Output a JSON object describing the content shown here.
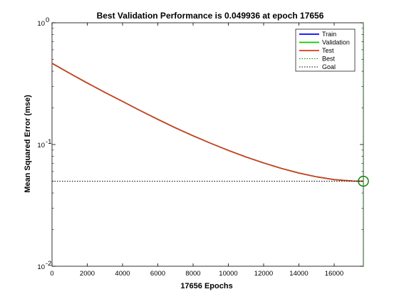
{
  "chart_data": {
    "type": "line",
    "title": "Best Validation Performance is 0.049936 at epoch 17656",
    "xlabel": "17656 Epochs",
    "ylabel": "Mean Squared Error  (mse)",
    "xlim": [
      0,
      17656
    ],
    "ylim": [
      0.01,
      1
    ],
    "yscale": "log",
    "x_ticks": [
      0,
      2000,
      4000,
      6000,
      8000,
      10000,
      12000,
      14000,
      16000
    ],
    "y_ticks": [
      {
        "value": 0.01,
        "base": "10",
        "exp": "-2"
      },
      {
        "value": 0.1,
        "base": "10",
        "exp": "-1"
      },
      {
        "value": 1,
        "base": "10",
        "exp": "0"
      }
    ],
    "grid": false,
    "legend_position": "top-right",
    "x": [
      0,
      1000,
      2000,
      3000,
      4000,
      5000,
      6000,
      7000,
      8000,
      9000,
      10000,
      11000,
      12000,
      13000,
      14000,
      15000,
      16000,
      17000,
      17656
    ],
    "series": [
      {
        "name": "Train",
        "color": "#0000ff",
        "style": "solid",
        "values": [
          0.465,
          0.385,
          0.32,
          0.268,
          0.226,
          0.19,
          0.161,
          0.137,
          0.118,
          0.1023,
          0.0895,
          0.079,
          0.0706,
          0.0637,
          0.0583,
          0.0543,
          0.0515,
          0.0502,
          0.049936
        ]
      },
      {
        "name": "Validation",
        "color": "#00cc00",
        "style": "solid",
        "values": [
          0.465,
          0.385,
          0.32,
          0.268,
          0.226,
          0.19,
          0.161,
          0.137,
          0.118,
          0.1023,
          0.0895,
          0.079,
          0.0706,
          0.0637,
          0.0583,
          0.0543,
          0.0515,
          0.0502,
          0.049936
        ]
      },
      {
        "name": "Test",
        "color": "#d93b1a",
        "style": "solid",
        "values": [
          0.465,
          0.385,
          0.32,
          0.268,
          0.226,
          0.19,
          0.161,
          0.137,
          0.118,
          0.1023,
          0.0895,
          0.079,
          0.0706,
          0.0637,
          0.0583,
          0.0543,
          0.0515,
          0.0502,
          0.049936
        ]
      }
    ],
    "best": {
      "name": "Best",
      "epoch": 17656,
      "value": 0.049936,
      "color": "#008000"
    },
    "goal": {
      "name": "Goal",
      "value": 0.05,
      "color": "#000000"
    }
  }
}
